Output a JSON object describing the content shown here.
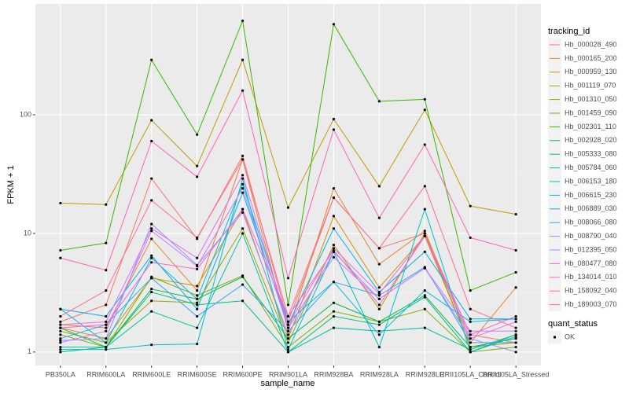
{
  "chart_data": {
    "type": "line",
    "x_label": "sample_name",
    "y_label": "FPKM + 1",
    "categories": [
      "PB350LA",
      "RRIM600LA",
      "RRIM600LE",
      "RRIM600SE",
      "RRIM600PE",
      "RRIM901LA",
      "RRIM928BA",
      "RRIM928LA",
      "RRIM928LE",
      "RRII105LA_Control",
      "RRII105LA_Stressed"
    ],
    "ylim": [
      0.77,
      860
    ],
    "yticks": [
      1,
      10,
      100
    ],
    "log_y": true,
    "grid": true,
    "legend_title": "tracking_id",
    "point_legend_title": "quant_status",
    "point_legend_label": "OK",
    "point_color": "#000000",
    "series": [
      {
        "name": "Hb_000028_490",
        "color": "#F8766D",
        "values": [
          1.8,
          2.5,
          29,
          9,
          45,
          1.8,
          20,
          7.5,
          10,
          1.4,
          1.2
        ]
      },
      {
        "name": "Hb_000165_200",
        "color": "#EA8331",
        "values": [
          1.7,
          1.6,
          9,
          3.3,
          42,
          1.5,
          24,
          5.5,
          10.5,
          1.2,
          3.5
        ]
      },
      {
        "name": "Hb_000959_130",
        "color": "#D89000",
        "values": [
          1.6,
          1.3,
          4.2,
          3.6,
          16,
          1.3,
          14,
          3.5,
          9.5,
          1.1,
          1.3
        ]
      },
      {
        "name": "Hb_001119_070",
        "color": "#C09B00",
        "values": [
          18,
          17.5,
          90,
          37,
          290,
          16.5,
          92,
          25,
          110,
          17,
          14.5
        ]
      },
      {
        "name": "Hb_001310_050",
        "color": "#A3A500",
        "values": [
          1.5,
          1.2,
          2.7,
          2.6,
          11,
          1.2,
          8,
          2.3,
          10,
          1.1,
          1.2
        ]
      },
      {
        "name": "Hb_001459_090",
        "color": "#7CAE00",
        "values": [
          1.4,
          1.1,
          4.3,
          3.0,
          4.4,
          1.1,
          2.2,
          1.8,
          2.3,
          1.0,
          1.1
        ]
      },
      {
        "name": "Hb_002301_110",
        "color": "#39B600",
        "values": [
          7.2,
          8.3,
          290,
          68,
          620,
          2.5,
          580,
          130,
          135,
          3.3,
          4.7
        ]
      },
      {
        "name": "Hb_002928_020",
        "color": "#00BB4E",
        "values": [
          1.6,
          1.1,
          3.4,
          2.8,
          4.3,
          1.3,
          2.6,
          1.8,
          3.0,
          1.1,
          1.3
        ]
      },
      {
        "name": "Hb_005333_080",
        "color": "#00BF7D",
        "values": [
          1.0,
          1.1,
          3.2,
          2.5,
          2.7,
          1.0,
          2.0,
          1.7,
          2.9,
          1.0,
          1.4
        ]
      },
      {
        "name": "Hb_005784_060",
        "color": "#00C1A3",
        "values": [
          1.1,
          1.1,
          2.2,
          1.6,
          10,
          1.0,
          1.6,
          1.5,
          1.6,
          1.05,
          1.4
        ]
      },
      {
        "name": "Hb_006153_180",
        "color": "#00BFC4",
        "values": [
          1.05,
          1.05,
          1.15,
          1.17,
          29,
          1.05,
          7,
          1.1,
          16,
          1.0,
          1.35
        ]
      },
      {
        "name": "Hb_006615_230",
        "color": "#00BAE0",
        "values": [
          2.3,
          1.2,
          6.2,
          2.8,
          26,
          1.8,
          3.9,
          1.4,
          3.3,
          1.8,
          1.9
        ]
      },
      {
        "name": "Hb_006889_030",
        "color": "#00B0F6",
        "values": [
          2.3,
          2.0,
          6.5,
          2.3,
          22,
          1.7,
          11,
          3.2,
          7,
          1.9,
          1.9
        ]
      },
      {
        "name": "Hb_008066_080",
        "color": "#35A2FF",
        "values": [
          1.3,
          1.7,
          4.2,
          2.0,
          3.7,
          1.5,
          3.9,
          3.0,
          5.2,
          1.2,
          1.2
        ]
      },
      {
        "name": "Hb_008790_040",
        "color": "#9590FF",
        "values": [
          1.25,
          1.3,
          12,
          5.4,
          15,
          1.4,
          7,
          2.8,
          5.1,
          1.3,
          1.0
        ]
      },
      {
        "name": "Hb_012395_050",
        "color": "#C77CFF",
        "values": [
          1.2,
          1.5,
          10.5,
          5.3,
          24,
          1.6,
          6.3,
          2.8,
          5.1,
          1.5,
          1.5
        ]
      },
      {
        "name": "Hb_080477_080",
        "color": "#E76BF3",
        "values": [
          1.7,
          1.8,
          11,
          6.2,
          31,
          1.7,
          7.5,
          3.1,
          9.5,
          1.3,
          1.8
        ]
      },
      {
        "name": "Hb_134014_010",
        "color": "#FA62DB",
        "values": [
          1.6,
          1.7,
          5.7,
          5,
          16,
          2.0,
          7.2,
          2.5,
          9.5,
          1.4,
          2.0
        ]
      },
      {
        "name": "Hb_158092_040",
        "color": "#FF62BC",
        "values": [
          6.2,
          4.9,
          60,
          30,
          160,
          4.2,
          75,
          13.5,
          56,
          9.2,
          7.2
        ]
      },
      {
        "name": "Hb_189003_070",
        "color": "#FF6C91",
        "values": [
          2.0,
          3.3,
          19,
          9.2,
          42,
          2.0,
          20,
          7.5,
          25,
          2.3,
          1.6
        ]
      }
    ]
  }
}
